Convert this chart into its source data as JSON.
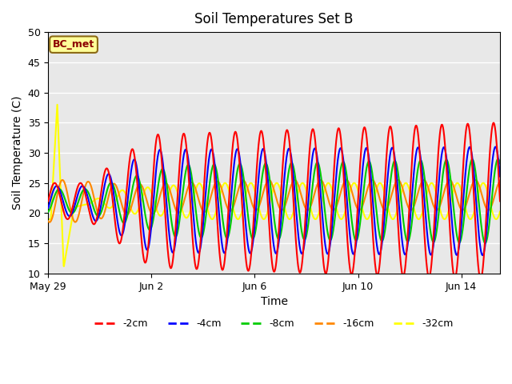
{
  "title": "Soil Temperatures Set B",
  "xlabel": "Time",
  "ylabel": "Soil Temperature (C)",
  "annotation": "BC_met",
  "ylim": [
    10,
    50
  ],
  "xlim": [
    0,
    17.5
  ],
  "xtick_positions": [
    0,
    4,
    8,
    12,
    16
  ],
  "xtick_labels": [
    "May 29",
    "Jun 2",
    "Jun 6",
    "Jun 10",
    "Jun 14"
  ],
  "ytick_positions": [
    10,
    15,
    20,
    25,
    30,
    35,
    40,
    45,
    50
  ],
  "colors": {
    "-2cm": "#ff0000",
    "-4cm": "#0000ff",
    "-8cm": "#00cc00",
    "-16cm": "#ff8800",
    "-32cm": "#ffff00"
  },
  "bg_color": "#e8e8e8",
  "fig_color": "#ffffff",
  "period_days": 1.0,
  "n_points": 1700,
  "duration_days": 17.5
}
